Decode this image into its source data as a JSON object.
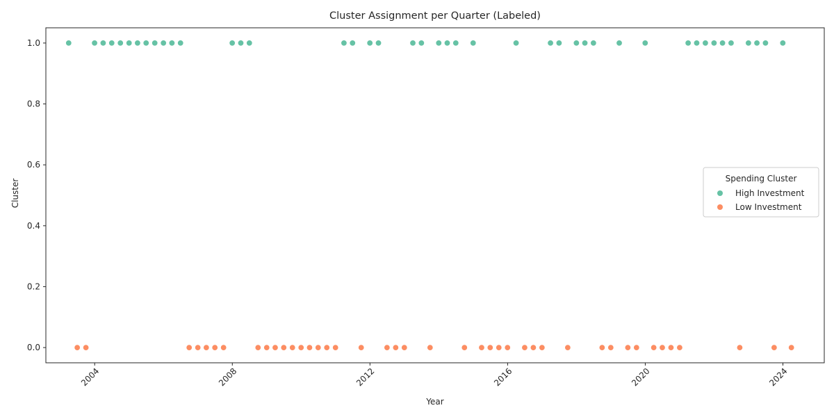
{
  "chart_data": {
    "type": "scatter",
    "title": "Cluster Assignment per Quarter (Labeled)",
    "xlabel": "Year",
    "ylabel": "Cluster",
    "xlim": [
      "2002-08-01",
      "2025-03-15"
    ],
    "ylim": [
      -0.05,
      1.05
    ],
    "x_ticks": [
      "2004",
      "2008",
      "2012",
      "2016",
      "2020",
      "2024"
    ],
    "y_ticks": [
      "0.0",
      "0.2",
      "0.4",
      "0.6",
      "0.8",
      "1.0"
    ],
    "grid": false,
    "legend": {
      "title": "Spending Cluster",
      "placement": "center-right"
    },
    "series": [
      {
        "name": "High Investment",
        "color": "#66c2a5",
        "y": 1,
        "x": [
          "2003-03-31",
          "2003-12-31",
          "2004-03-31",
          "2004-06-30",
          "2004-09-30",
          "2004-12-31",
          "2005-03-31",
          "2005-06-30",
          "2005-09-30",
          "2005-12-31",
          "2006-03-31",
          "2006-06-30",
          "2007-12-31",
          "2008-03-31",
          "2008-06-30",
          "2011-03-31",
          "2011-06-30",
          "2011-12-31",
          "2012-03-31",
          "2013-03-31",
          "2013-06-30",
          "2013-12-31",
          "2014-03-31",
          "2014-06-30",
          "2014-12-31",
          "2016-03-31",
          "2017-03-31",
          "2017-06-30",
          "2017-12-31",
          "2018-03-31",
          "2018-06-30",
          "2019-03-31",
          "2019-12-31",
          "2021-03-31",
          "2021-06-30",
          "2021-09-30",
          "2021-12-31",
          "2022-03-31",
          "2022-06-30",
          "2022-12-31",
          "2023-03-31",
          "2023-06-30",
          "2023-12-31"
        ]
      },
      {
        "name": "Low Investment",
        "color": "#fc8d62",
        "y": 0,
        "x": [
          "2003-06-30",
          "2003-09-30",
          "2006-09-30",
          "2006-12-31",
          "2007-03-31",
          "2007-06-30",
          "2007-09-30",
          "2008-09-30",
          "2008-12-31",
          "2009-03-31",
          "2009-06-30",
          "2009-09-30",
          "2009-12-31",
          "2010-03-31",
          "2010-06-30",
          "2010-09-30",
          "2010-12-31",
          "2011-09-30",
          "2012-06-30",
          "2012-09-30",
          "2012-12-31",
          "2013-09-30",
          "2014-09-30",
          "2015-03-31",
          "2015-06-30",
          "2015-09-30",
          "2015-12-31",
          "2016-06-30",
          "2016-09-30",
          "2016-12-31",
          "2017-09-30",
          "2018-09-30",
          "2018-12-31",
          "2019-06-30",
          "2019-09-30",
          "2020-03-31",
          "2020-06-30",
          "2020-09-30",
          "2020-12-31",
          "2022-09-30",
          "2023-09-30",
          "2024-03-31"
        ]
      }
    ]
  }
}
